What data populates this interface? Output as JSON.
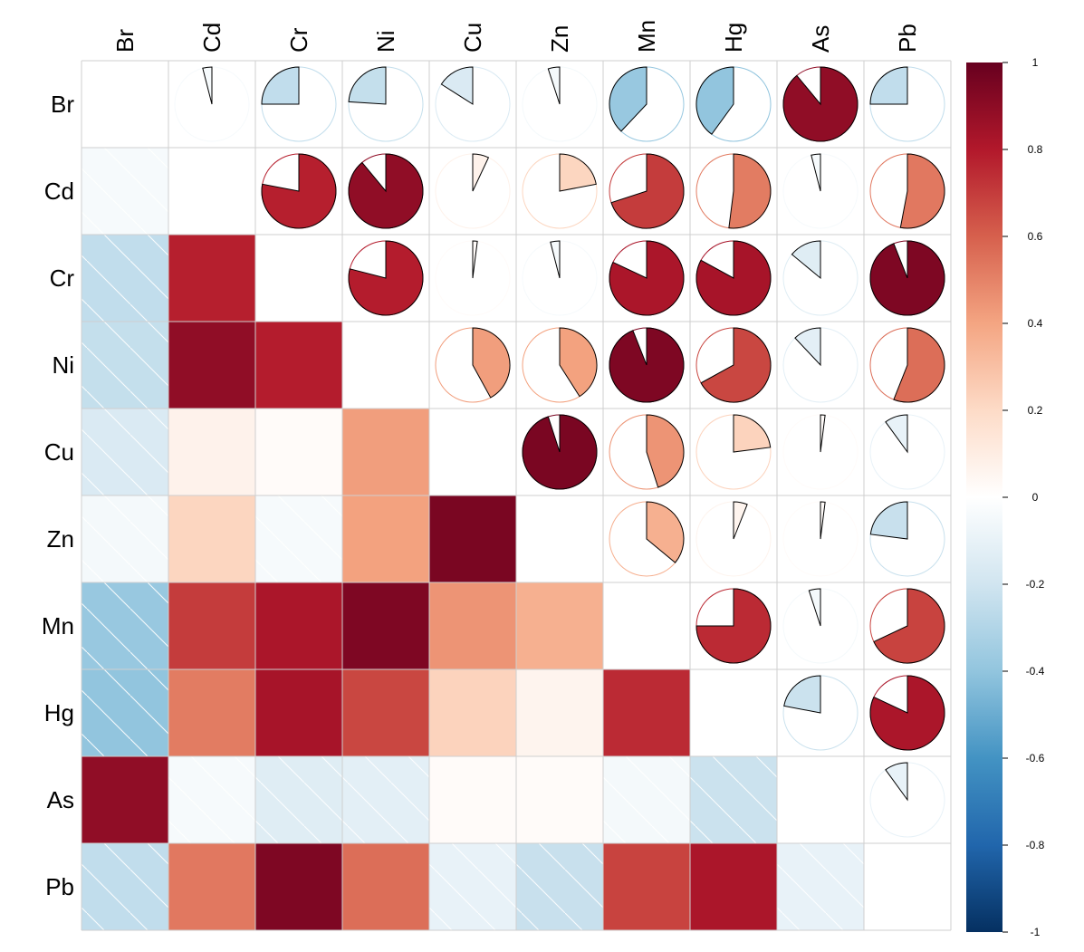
{
  "chart_data": {
    "type": "heatmap",
    "title": "",
    "variables": [
      "Br",
      "Cd",
      "Cr",
      "Ni",
      "Cu",
      "Zn",
      "Mn",
      "Hg",
      "As",
      "Pb"
    ],
    "upper_method": "pie",
    "lower_method": "shade",
    "diagonal": "blank",
    "negative_values_hatched": true,
    "matrix": [
      [
        1.0,
        -0.04,
        -0.25,
        -0.24,
        -0.16,
        -0.05,
        -0.38,
        -0.4,
        0.89,
        -0.25
      ],
      [
        -0.04,
        1.0,
        0.78,
        0.89,
        0.07,
        0.22,
        0.7,
        0.52,
        -0.04,
        0.53
      ],
      [
        -0.25,
        0.78,
        1.0,
        0.79,
        0.02,
        -0.04,
        0.82,
        0.83,
        -0.14,
        0.94
      ],
      [
        -0.24,
        0.89,
        0.79,
        1.0,
        0.42,
        0.41,
        0.94,
        0.67,
        -0.12,
        0.56
      ],
      [
        -0.16,
        0.07,
        0.02,
        0.42,
        1.0,
        0.95,
        0.45,
        0.23,
        0.02,
        -0.1
      ],
      [
        -0.05,
        0.22,
        -0.04,
        0.41,
        0.95,
        1.0,
        0.36,
        0.06,
        0.02,
        -0.23
      ],
      [
        -0.38,
        0.7,
        0.82,
        0.94,
        0.45,
        0.36,
        1.0,
        0.75,
        -0.05,
        0.68
      ],
      [
        -0.4,
        0.52,
        0.83,
        0.67,
        0.23,
        0.06,
        0.75,
        1.0,
        -0.22,
        0.82
      ],
      [
        0.89,
        -0.04,
        -0.14,
        -0.12,
        0.02,
        0.02,
        -0.05,
        -0.22,
        1.0,
        -0.1
      ],
      [
        -0.25,
        0.53,
        0.94,
        0.56,
        -0.1,
        -0.23,
        0.68,
        0.82,
        -0.1,
        1.0
      ]
    ],
    "colorbar": {
      "range": [
        -1,
        1
      ],
      "ticks": [
        "1",
        "0.8",
        "0.6",
        "0.4",
        "0.2",
        "0",
        "-0.2",
        "-0.4",
        "-0.6",
        "-0.8",
        "-1"
      ],
      "colors": [
        "#67001F",
        "#B2182B",
        "#D6604D",
        "#F4A582",
        "#FDDBC7",
        "#FFFFFF",
        "#D1E5F0",
        "#92C5DE",
        "#4393C3",
        "#2166AC",
        "#053061"
      ]
    }
  }
}
